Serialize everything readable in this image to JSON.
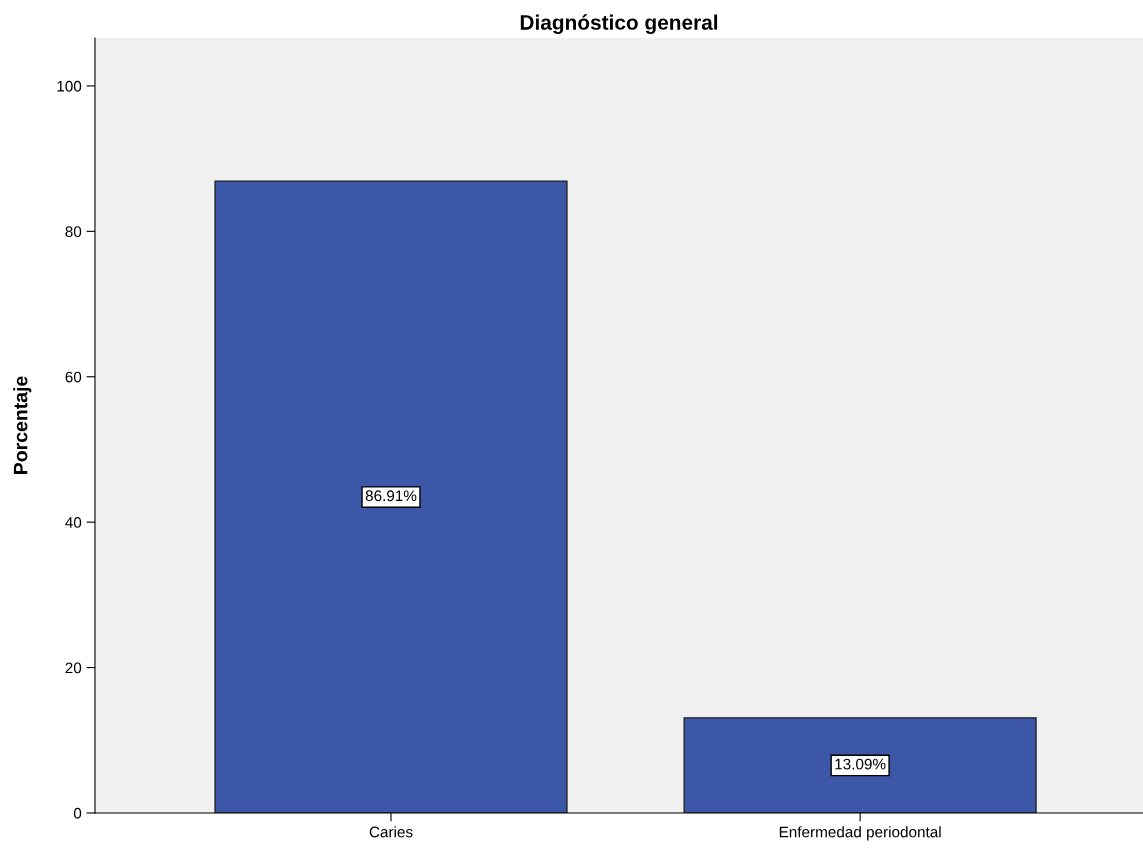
{
  "chart_data": {
    "type": "bar",
    "title": "Diagnóstico general",
    "ylabel": "Porcentaje",
    "categories": [
      "Caries",
      "Enfermedad periodontal"
    ],
    "values": [
      86.91,
      13.09
    ],
    "value_labels": [
      "86.91%",
      "13.09%"
    ],
    "color": "#3c56a8",
    "ylim": [
      0,
      106.6
    ],
    "yticks": [
      0,
      20,
      40,
      60,
      80,
      100
    ],
    "grid": false,
    "legend": false
  }
}
